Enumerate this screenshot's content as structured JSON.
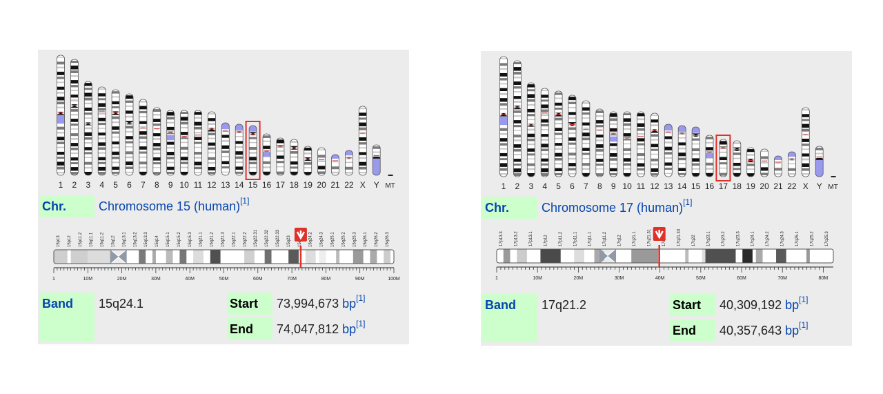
{
  "colors": {
    "panel_bg": "#ececec",
    "label_bg": "#ccffcc",
    "link": "#0645ad",
    "highlight": "#e0302a",
    "centromere": "#8f9aa6",
    "heterochromatin": "#9999ee"
  },
  "karyotype_labels": [
    "1",
    "2",
    "3",
    "4",
    "5",
    "6",
    "7",
    "8",
    "9",
    "10",
    "11",
    "12",
    "13",
    "14",
    "15",
    "16",
    "17",
    "18",
    "19",
    "20",
    "21",
    "22",
    "X",
    "Y",
    "MT"
  ],
  "left": {
    "highlighted_chromosome": "15",
    "chr_label": "Chr.",
    "chr_value": "Chromosome 15 (human)",
    "chr_ref": "[1]",
    "band_label": "Band",
    "band_value": "15q24.1",
    "start_label": "Start",
    "start_value": "73,994,673",
    "end_label": "End",
    "end_value": "74,047,812",
    "unit": "bp",
    "ref": "[1]",
    "band_names": [
      "15p13",
      "15p12",
      "15p11.2",
      "15q11.1",
      "15q11.2",
      "15q12",
      "15q13.1",
      "15q13.2",
      "15q13.3",
      "15q14",
      "15q15.1",
      "15q15.2",
      "15q15.3",
      "15q21.1",
      "15q21.2",
      "15q21.3",
      "15q22.1",
      "15q22.2",
      "15q22.31",
      "15q22.32",
      "15q22.33",
      "15q23",
      "15q24.1",
      "15q24.2",
      "15q24.3",
      "15q25.1",
      "15q25.2",
      "15q25.3",
      "15q26.1",
      "15q26.2",
      "15q26.3"
    ],
    "scale_labels": [
      "1",
      "10M",
      "20M",
      "30M",
      "40M",
      "50M",
      "60M",
      "70M",
      "80M",
      "90M",
      "100M"
    ],
    "marker_fraction": 0.726
  },
  "right": {
    "highlighted_chromosome": "17",
    "chr_label": "Chr.",
    "chr_value": "Chromosome 17 (human)",
    "chr_ref": "[1]",
    "band_label": "Band",
    "band_value": "17q21.2",
    "start_label": "Start",
    "start_value": "40,309,192",
    "end_label": "End",
    "end_value": "40,357,643",
    "unit": "bp",
    "ref": "[1]",
    "band_names": [
      "17p13.3",
      "17p13.2",
      "17p13.1",
      "17p12",
      "17p11.2",
      "17p11.1",
      "17q11.1",
      "17q11.2",
      "17q12",
      "17q21.1",
      "17q21.31",
      "17q21.32",
      "17q21.33",
      "17q22",
      "17q23.1",
      "17q23.2",
      "17q23.3",
      "17q24.1",
      "17q24.2",
      "17q24.3",
      "17q25.1",
      "17q25.2",
      "17q25.3"
    ],
    "scale_labels": [
      "1",
      "10M",
      "20M",
      "30M",
      "40M",
      "50M",
      "60M",
      "70M",
      "80M"
    ],
    "marker_fraction": 0.483
  }
}
